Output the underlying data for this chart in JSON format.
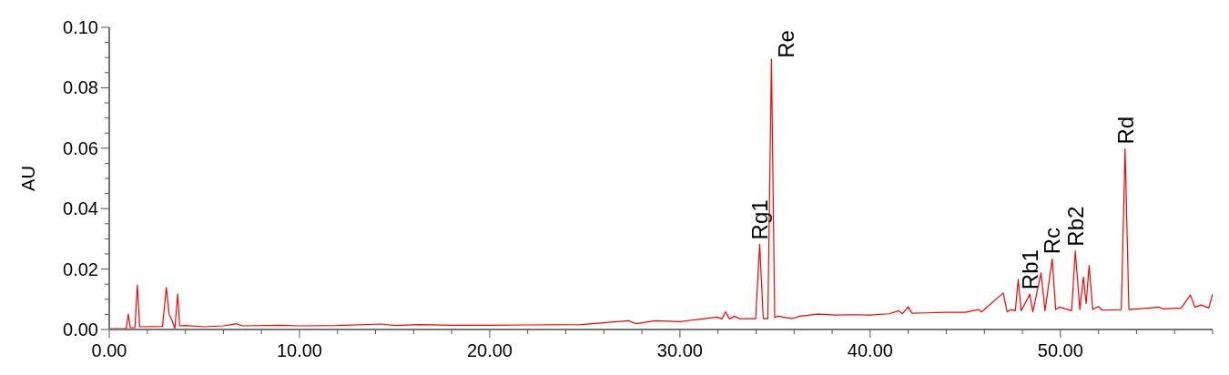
{
  "chart_data": {
    "type": "line",
    "ylabel": "AU",
    "x": [
      0.0,
      0.8,
      0.9,
      1.0,
      1.1,
      1.35,
      1.48,
      1.6,
      2.8,
      3.0,
      3.15,
      3.3,
      3.45,
      3.6,
      3.7,
      4.0,
      5.0,
      6.0,
      6.7,
      7.0,
      9.0,
      10.0,
      12.0,
      14.3,
      15.0,
      16.3,
      18.0,
      20.0,
      22.0,
      24.8,
      27.3,
      27.7,
      28.7,
      30.0,
      30.9,
      31.95,
      32.2,
      32.4,
      32.6,
      32.87,
      33.1,
      33.98,
      34.19,
      34.38,
      34.62,
      34.81,
      34.98,
      35.18,
      35.9,
      36.3,
      37.25,
      38.2,
      39.0,
      40.0,
      41.0,
      41.5,
      41.7,
      42.0,
      42.2,
      43.0,
      44.0,
      45.0,
      45.7,
      45.85,
      46.99,
      47.2,
      47.4,
      47.63,
      47.78,
      47.94,
      48.39,
      48.55,
      48.98,
      49.19,
      49.57,
      49.75,
      49.95,
      50.59,
      50.78,
      51.02,
      51.21,
      51.35,
      51.51,
      51.7,
      51.99,
      52.2,
      53.2,
      53.4,
      53.6,
      55.2,
      55.4,
      56.35,
      56.83,
      57.07,
      57.4,
      57.8,
      58.0
    ],
    "series": [
      {
        "color": "#ff0000",
        "values": [
          0.0003,
          0.0003,
          0.0004,
          0.0051,
          0.0006,
          0.0006,
          0.0147,
          0.0009,
          0.001,
          0.0139,
          0.005,
          0.003,
          0.0003,
          0.0117,
          0.0012,
          0.0013,
          0.0009,
          0.0012,
          0.0019,
          0.0012,
          0.0014,
          0.0012,
          0.0013,
          0.0018,
          0.0013,
          0.0016,
          0.0014,
          0.0014,
          0.0015,
          0.0016,
          0.0029,
          0.0019,
          0.0029,
          0.0026,
          0.0033,
          0.0041,
          0.0035,
          0.0059,
          0.0035,
          0.0044,
          0.0036,
          0.0036,
          0.0282,
          0.0036,
          0.0036,
          0.0895,
          0.004,
          0.0044,
          0.0036,
          0.0044,
          0.0051,
          0.0048,
          0.0049,
          0.0048,
          0.0052,
          0.0062,
          0.0052,
          0.0075,
          0.0054,
          0.0055,
          0.0057,
          0.0057,
          0.0066,
          0.0058,
          0.0121,
          0.0058,
          0.0066,
          0.0062,
          0.0165,
          0.0062,
          0.0117,
          0.0058,
          0.0187,
          0.0062,
          0.0234,
          0.0066,
          0.0074,
          0.0062,
          0.026,
          0.0066,
          0.0174,
          0.0086,
          0.0212,
          0.0066,
          0.0076,
          0.0064,
          0.0066,
          0.0598,
          0.0066,
          0.0074,
          0.0068,
          0.0071,
          0.0114,
          0.0074,
          0.0081,
          0.0071,
          0.0118
        ]
      }
    ],
    "xlim": [
      0,
      58
    ],
    "ylim": [
      0,
      0.1
    ],
    "xticks": [
      {
        "value": 0,
        "label": "0.00"
      },
      {
        "value": 2,
        "label": null
      },
      {
        "value": 4,
        "label": null
      },
      {
        "value": 6,
        "label": null
      },
      {
        "value": 8,
        "label": null
      },
      {
        "value": 10,
        "label": "10.00"
      },
      {
        "value": 12,
        "label": null
      },
      {
        "value": 14,
        "label": null
      },
      {
        "value": 16,
        "label": null
      },
      {
        "value": 18,
        "label": null
      },
      {
        "value": 20,
        "label": "20.00"
      },
      {
        "value": 22,
        "label": null
      },
      {
        "value": 24,
        "label": null
      },
      {
        "value": 26,
        "label": null
      },
      {
        "value": 28,
        "label": null
      },
      {
        "value": 30,
        "label": "30.00"
      },
      {
        "value": 32,
        "label": null
      },
      {
        "value": 34,
        "label": null
      },
      {
        "value": 36,
        "label": null
      },
      {
        "value": 38,
        "label": null
      },
      {
        "value": 40,
        "label": "40.00"
      },
      {
        "value": 42,
        "label": null
      },
      {
        "value": 44,
        "label": null
      },
      {
        "value": 46,
        "label": null
      },
      {
        "value": 48,
        "label": null
      },
      {
        "value": 50,
        "label": "50.00"
      },
      {
        "value": 52,
        "label": null
      },
      {
        "value": 54,
        "label": null
      },
      {
        "value": 56,
        "label": null
      },
      {
        "value": 58,
        "label": null
      }
    ],
    "yticks": [
      {
        "value": 0,
        "label": "0.00"
      },
      {
        "value": 0.005,
        "label": null
      },
      {
        "value": 0.01,
        "label": null
      },
      {
        "value": 0.015,
        "label": null
      },
      {
        "value": 0.02,
        "label": "0.02"
      },
      {
        "value": 0.025,
        "label": null
      },
      {
        "value": 0.03,
        "label": null
      },
      {
        "value": 0.035,
        "label": null
      },
      {
        "value": 0.04,
        "label": "0.04"
      },
      {
        "value": 0.045,
        "label": null
      },
      {
        "value": 0.05,
        "label": null
      },
      {
        "value": 0.055,
        "label": null
      },
      {
        "value": 0.06,
        "label": "0.06"
      },
      {
        "value": 0.065,
        "label": null
      },
      {
        "value": 0.07,
        "label": null
      },
      {
        "value": 0.075,
        "label": null
      },
      {
        "value": 0.08,
        "label": "0.08"
      },
      {
        "value": 0.085,
        "label": null
      },
      {
        "value": 0.09,
        "label": null
      },
      {
        "value": 0.095,
        "label": null
      },
      {
        "value": 0.1,
        "label": "0.10"
      }
    ],
    "annotations": [
      {
        "text": "Rg1",
        "x": 34.19,
        "y": 0.0282
      },
      {
        "text": "Re",
        "x": 34.81,
        "y": 0.0895
      },
      {
        "text": "Rb1",
        "x": 48.39,
        "y": 0.0117
      },
      {
        "text": "Rc",
        "x": 49.57,
        "y": 0.0234
      },
      {
        "text": "Rb2",
        "x": 50.78,
        "y": 0.026
      },
      {
        "text": "Rd",
        "x": 53.4,
        "y": 0.0598
      }
    ],
    "marker": "none",
    "line_style": "solid"
  }
}
